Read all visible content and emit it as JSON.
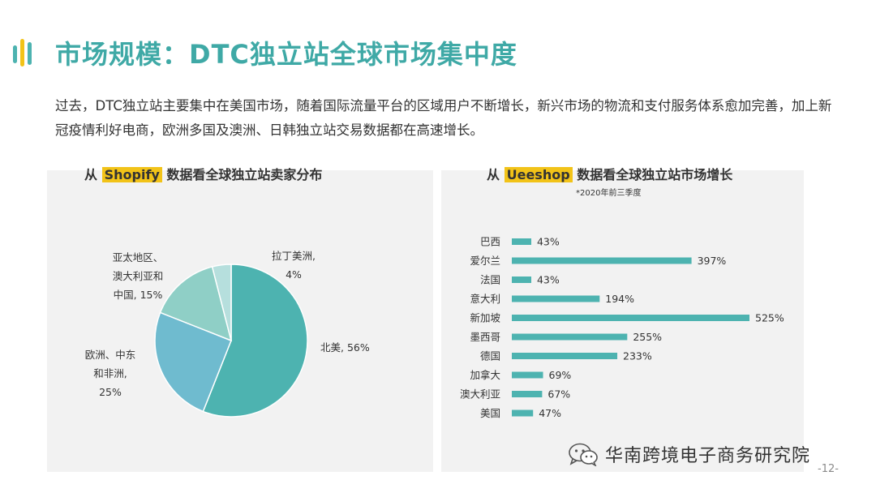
{
  "page": {
    "title": "市场规模：DTC独立站全球市场集中度",
    "intro": "过去，DTC独立站主要集中在美国市场，随着国际流量平台的区域用户不断增长，新兴市场的物流和支付服务体系愈加完善，加上新冠疫情利好电商，欧洲多国及澳洲、日韩独立站交易数据都在高速增长。",
    "footer": "华南跨境电子商务研究院",
    "page_number": "-12-"
  },
  "chart_data": [
    {
      "type": "pie",
      "title_prefix": "从",
      "title_highlight": "Shopify",
      "title_suffix": "数据看全球独立站卖家分布",
      "slices": [
        {
          "label_lines": [
            "北美, 56%"
          ],
          "value": 56,
          "color": "#4db3b0"
        },
        {
          "label_lines": [
            "欧洲、中东",
            "和非洲,",
            "25%"
          ],
          "value": 25,
          "color": "#6fbbcf"
        },
        {
          "label_lines": [
            "亚太地区、",
            "澳大利亚和",
            "中国, 15%"
          ],
          "value": 15,
          "color": "#8fcfc6"
        },
        {
          "label_lines": [
            "拉丁美洲,",
            "4%"
          ],
          "value": 4,
          "color": "#b6dfdd"
        }
      ]
    },
    {
      "type": "bar",
      "orientation": "horizontal",
      "title_prefix": "从",
      "title_highlight": "Ueeshop",
      "title_suffix": "数据看全球独立站市场增长",
      "note": "*2020年前三季度",
      "categories": [
        "巴西",
        "爱尔兰",
        "法国",
        "意大利",
        "新加坡",
        "墨西哥",
        "德国",
        "加拿大",
        "澳大利亚",
        "美国"
      ],
      "values": [
        43,
        397,
        43,
        194,
        525,
        255,
        233,
        69,
        67,
        47
      ],
      "value_labels": [
        "43%",
        "397%",
        "43%",
        "194%",
        "525%",
        "255%",
        "233%",
        "69%",
        "67%",
        "47%"
      ],
      "xlim": [
        0,
        525
      ],
      "color": "#4db3b0"
    }
  ]
}
